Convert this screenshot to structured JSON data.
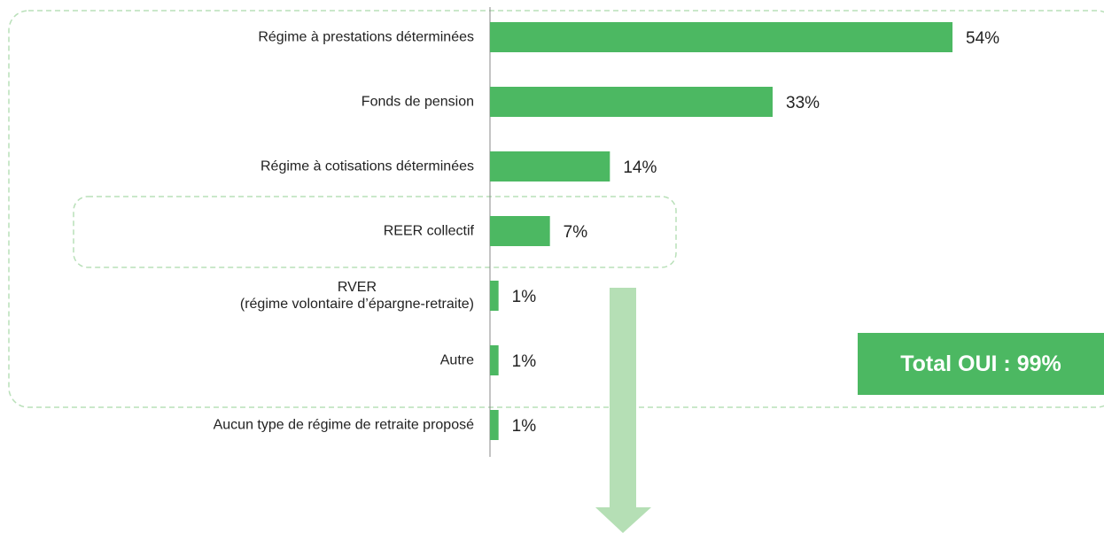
{
  "chart_data": {
    "type": "bar",
    "orientation": "horizontal",
    "color": "#4cb862",
    "categories": [
      "Régime à prestations déterminées",
      "Fonds de pension",
      "Régime à cotisations déterminées",
      "REER collectif",
      "RVER\n(régime volontaire d’épargne-retraite)",
      "Autre",
      "Aucun type de régime de retraite proposé"
    ],
    "values": [
      54,
      33,
      14,
      7,
      1,
      1,
      1
    ],
    "value_labels": [
      "54%",
      "33%",
      "14%",
      "7%",
      "1%",
      "1%",
      "1%"
    ],
    "annotation": "Total OUI : 99%"
  }
}
